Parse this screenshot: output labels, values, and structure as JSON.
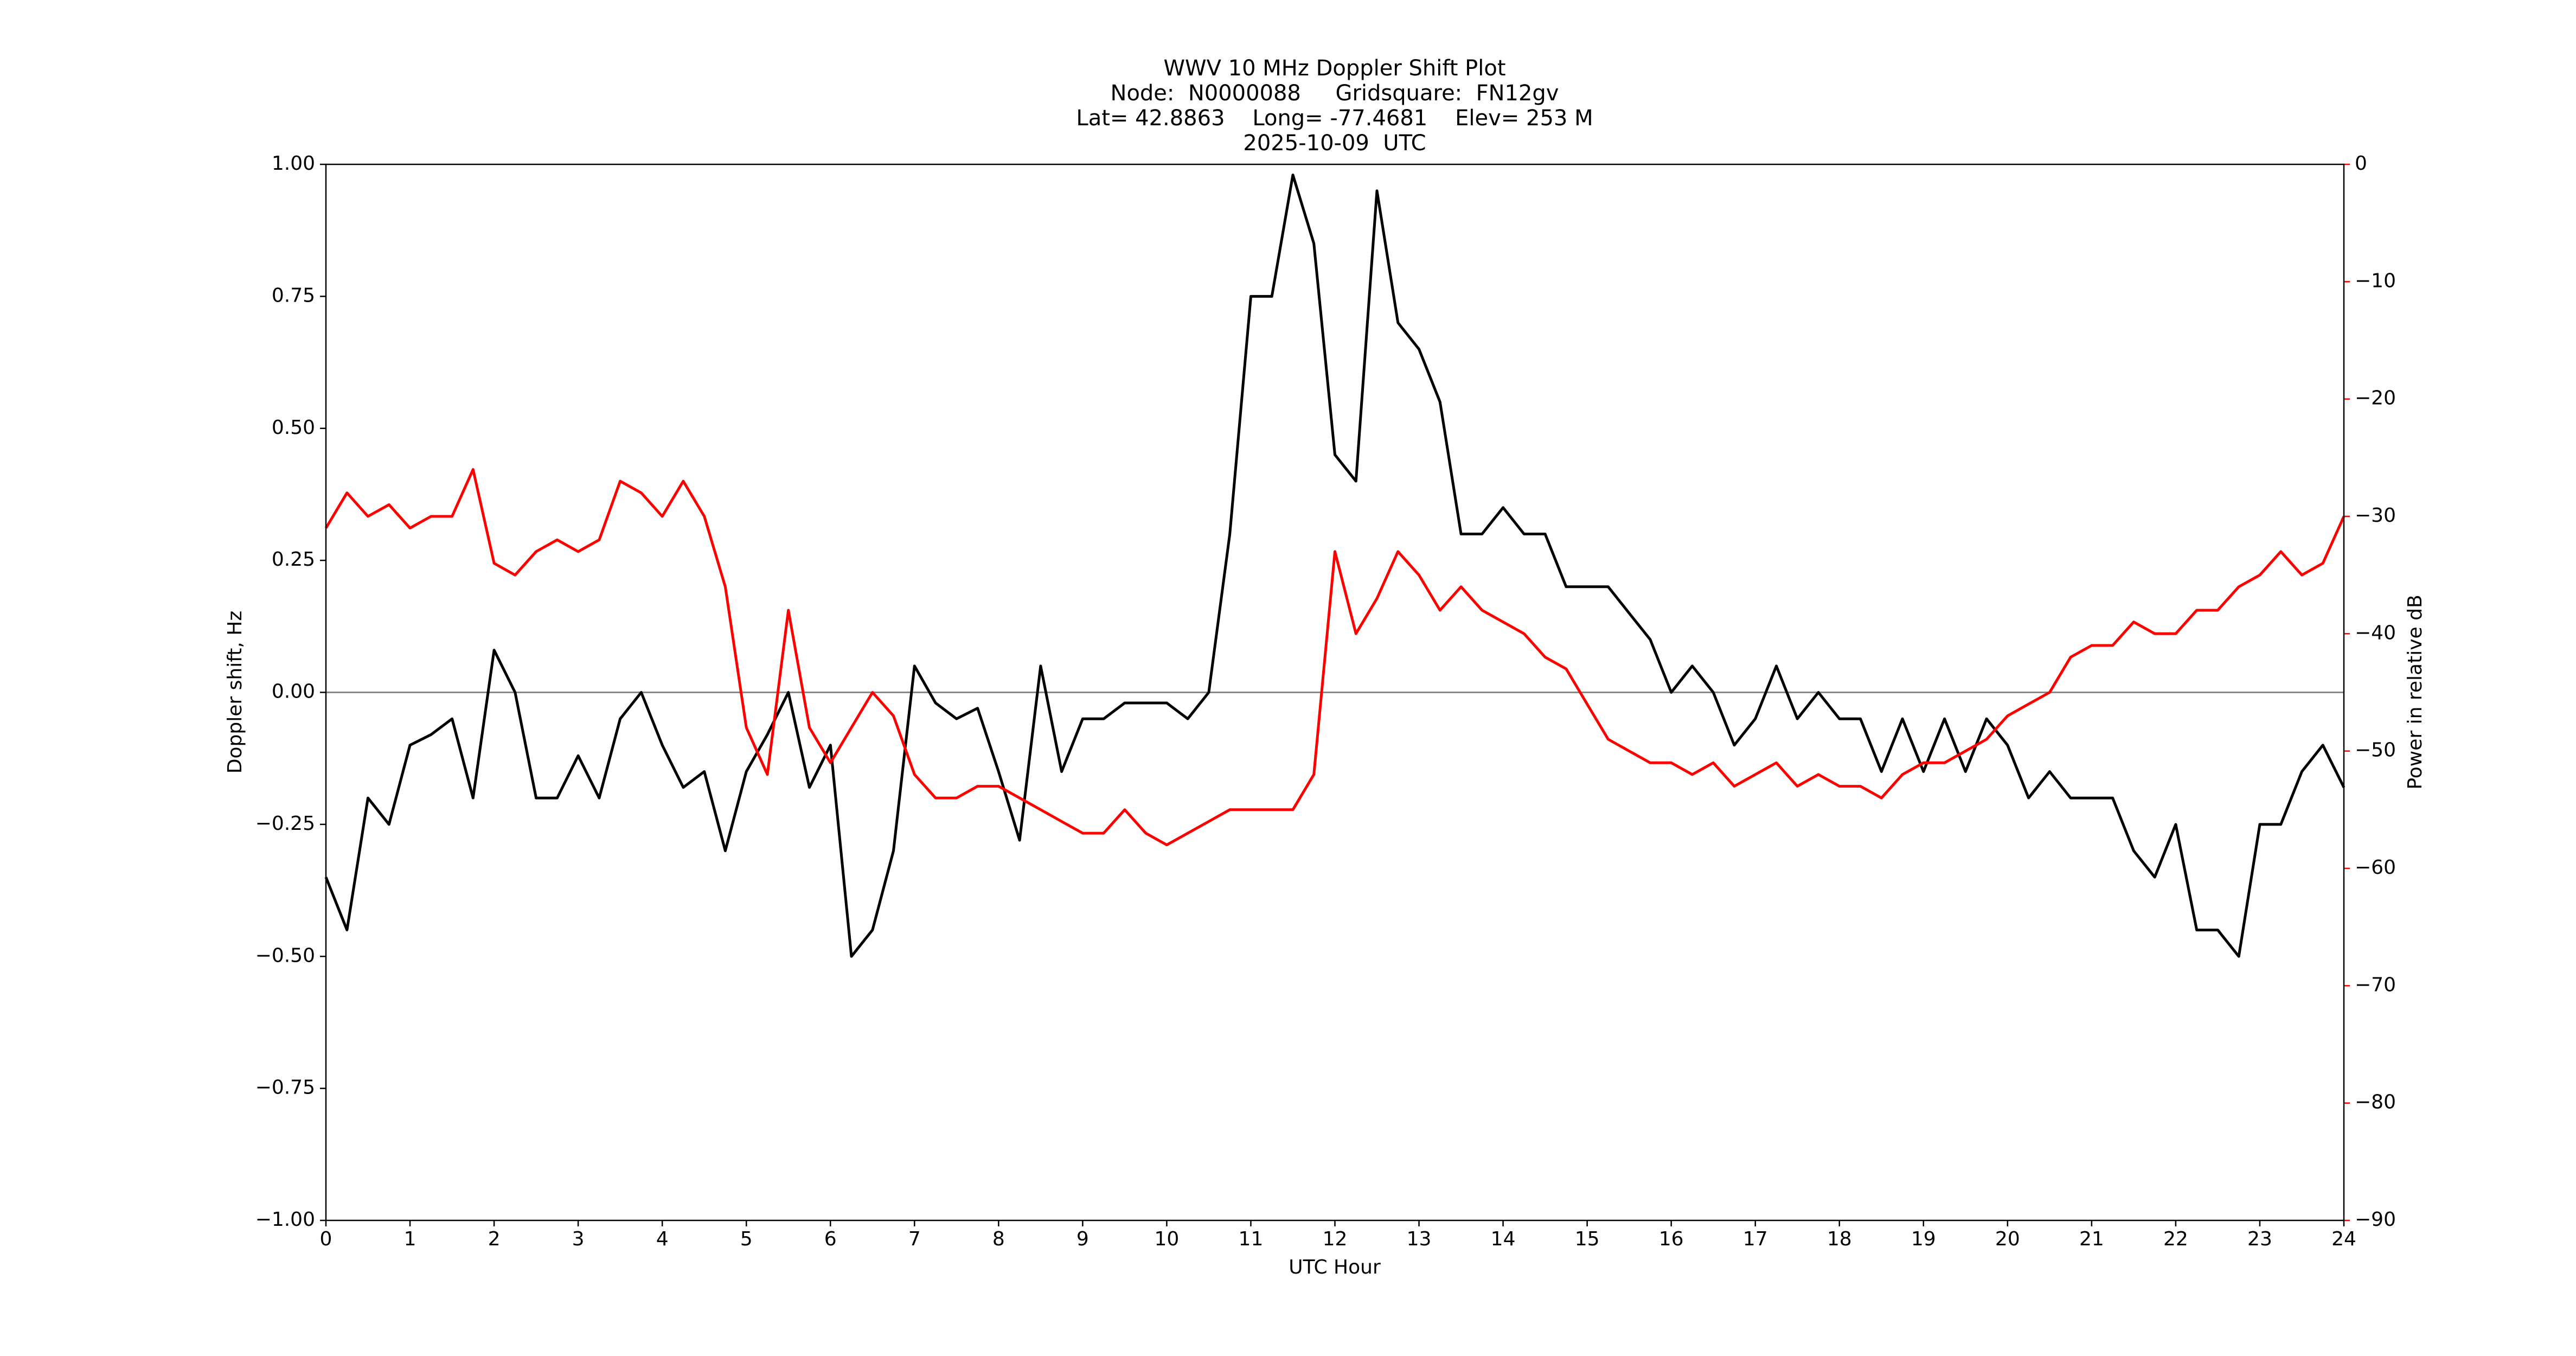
{
  "chart_data": {
    "type": "line",
    "title": "WWV 10 MHz Doppler Shift Plot",
    "subtitle_lines": [
      "Node:  N0000088     Gridsquare:  FN12gv",
      "Lat= 42.8863    Long= -77.4681    Elev= 253 M",
      "2025-10-09  UTC"
    ],
    "x_label": "UTC Hour",
    "y_label": "Doppler shift, Hz",
    "y2_label": "Power in relative dB",
    "y2_color": "#ff0000",
    "reference_line": 0,
    "x": [
      0,
      0.25,
      0.5,
      0.75,
      1,
      1.25,
      1.5,
      1.75,
      2,
      2.25,
      2.5,
      2.75,
      3,
      3.25,
      3.5,
      3.75,
      4,
      4.25,
      4.5,
      4.75,
      5,
      5.25,
      5.5,
      5.75,
      6,
      6.25,
      6.5,
      6.75,
      7,
      7.25,
      7.5,
      7.75,
      8,
      8.25,
      8.5,
      8.75,
      9,
      9.25,
      9.5,
      9.75,
      10,
      10.25,
      10.5,
      10.75,
      11,
      11.25,
      11.5,
      11.75,
      12,
      12.25,
      12.5,
      12.75,
      13,
      13.25,
      13.5,
      13.75,
      14,
      14.25,
      14.5,
      14.75,
      15,
      15.25,
      15.5,
      15.75,
      16,
      16.25,
      16.5,
      16.75,
      17,
      17.25,
      17.5,
      17.75,
      18,
      18.25,
      18.5,
      18.75,
      19,
      19.25,
      19.5,
      19.75,
      20,
      20.25,
      20.5,
      20.75,
      21,
      21.25,
      21.5,
      21.75,
      22,
      22.25,
      22.5,
      22.75,
      23,
      23.25,
      23.5,
      23.75,
      24
    ],
    "series": [
      {
        "name": "Doppler shift",
        "color": "#000000",
        "values": [
          -0.35,
          -0.45,
          -0.2,
          -0.25,
          -0.1,
          -0.08,
          -0.05,
          -0.2,
          0.08,
          0.0,
          -0.2,
          -0.2,
          -0.12,
          -0.2,
          -0.05,
          0.0,
          -0.1,
          -0.18,
          -0.15,
          -0.3,
          -0.15,
          -0.08,
          0.0,
          -0.18,
          -0.1,
          -0.5,
          -0.45,
          -0.3,
          0.05,
          -0.02,
          -0.05,
          -0.03,
          -0.15,
          -0.28,
          0.05,
          -0.15,
          -0.05,
          -0.05,
          -0.02,
          -0.02,
          -0.02,
          -0.05,
          0.0,
          0.3,
          0.75,
          0.75,
          0.98,
          0.85,
          0.45,
          0.4,
          0.95,
          0.7,
          0.65,
          0.55,
          0.3,
          0.3,
          0.35,
          0.3,
          0.3,
          0.2,
          0.2,
          0.2,
          0.15,
          0.1,
          0.0,
          0.05,
          0.0,
          -0.1,
          -0.05,
          0.05,
          -0.05,
          0.0,
          -0.05,
          -0.05,
          -0.15,
          -0.05,
          -0.15,
          -0.05,
          -0.15,
          -0.05,
          -0.1,
          -0.2,
          -0.15,
          -0.2,
          -0.2,
          -0.2,
          -0.3,
          -0.35,
          -0.25,
          -0.45,
          -0.45,
          -0.5,
          -0.25,
          -0.25,
          -0.15,
          -0.1,
          -0.18
        ]
      },
      {
        "name": "Power",
        "color": "#ff0000",
        "axis": "y2",
        "values": [
          -31,
          -28,
          -30,
          -29,
          -31,
          -30,
          -30,
          -26,
          -34,
          -35,
          -33,
          -32,
          -33,
          -32,
          -27,
          -28,
          -30,
          -27,
          -30,
          -36,
          -48,
          -52,
          -38,
          -48,
          -51,
          -48,
          -45,
          -47,
          -52,
          -54,
          -54,
          -53,
          -53,
          -54,
          -55,
          -56,
          -57,
          -57,
          -55,
          -57,
          -58,
          -57,
          -56,
          -55,
          -55,
          -55,
          -55,
          -52,
          -33,
          -40,
          -37,
          -33,
          -35,
          -38,
          -36,
          -38,
          -39,
          -40,
          -42,
          -43,
          -46,
          -49,
          -50,
          -51,
          -51,
          -52,
          -51,
          -53,
          -52,
          -51,
          -53,
          -52,
          -53,
          -53,
          -54,
          -52,
          -51,
          -51,
          -50,
          -49,
          -47,
          -46,
          -45,
          -42,
          -41,
          -41,
          -39,
          -40,
          -40,
          -38,
          -38,
          -36,
          -35,
          -33,
          -35,
          -34,
          -30
        ]
      }
    ],
    "xlim": [
      0,
      24
    ],
    "xticks": [
      0,
      1,
      2,
      3,
      4,
      5,
      6,
      7,
      8,
      9,
      10,
      11,
      12,
      13,
      14,
      15,
      16,
      17,
      18,
      19,
      20,
      21,
      22,
      23,
      24
    ],
    "ylim": [
      -1,
      1
    ],
    "yticks": [
      {
        "value": -1,
        "label": "−1.00"
      },
      {
        "value": -0.75,
        "label": "−0.75"
      },
      {
        "value": -0.5,
        "label": "−0.50"
      },
      {
        "value": -0.25,
        "label": "−0.25"
      },
      {
        "value": 0,
        "label": "0.00"
      },
      {
        "value": 0.25,
        "label": "0.25"
      },
      {
        "value": 0.5,
        "label": "0.50"
      },
      {
        "value": 0.75,
        "label": "0.75"
      },
      {
        "value": 1,
        "label": "1.00"
      }
    ],
    "y2lim": [
      -90,
      0
    ],
    "y2ticks": [
      {
        "value": -90,
        "label": "−90"
      },
      {
        "value": -80,
        "label": "−80"
      },
      {
        "value": -70,
        "label": "−70"
      },
      {
        "value": -60,
        "label": "−60"
      },
      {
        "value": -50,
        "label": "−50"
      },
      {
        "value": -40,
        "label": "−40"
      },
      {
        "value": -30,
        "label": "−30"
      },
      {
        "value": -20,
        "label": "−20"
      },
      {
        "value": -10,
        "label": "−10"
      },
      0
    ]
  }
}
